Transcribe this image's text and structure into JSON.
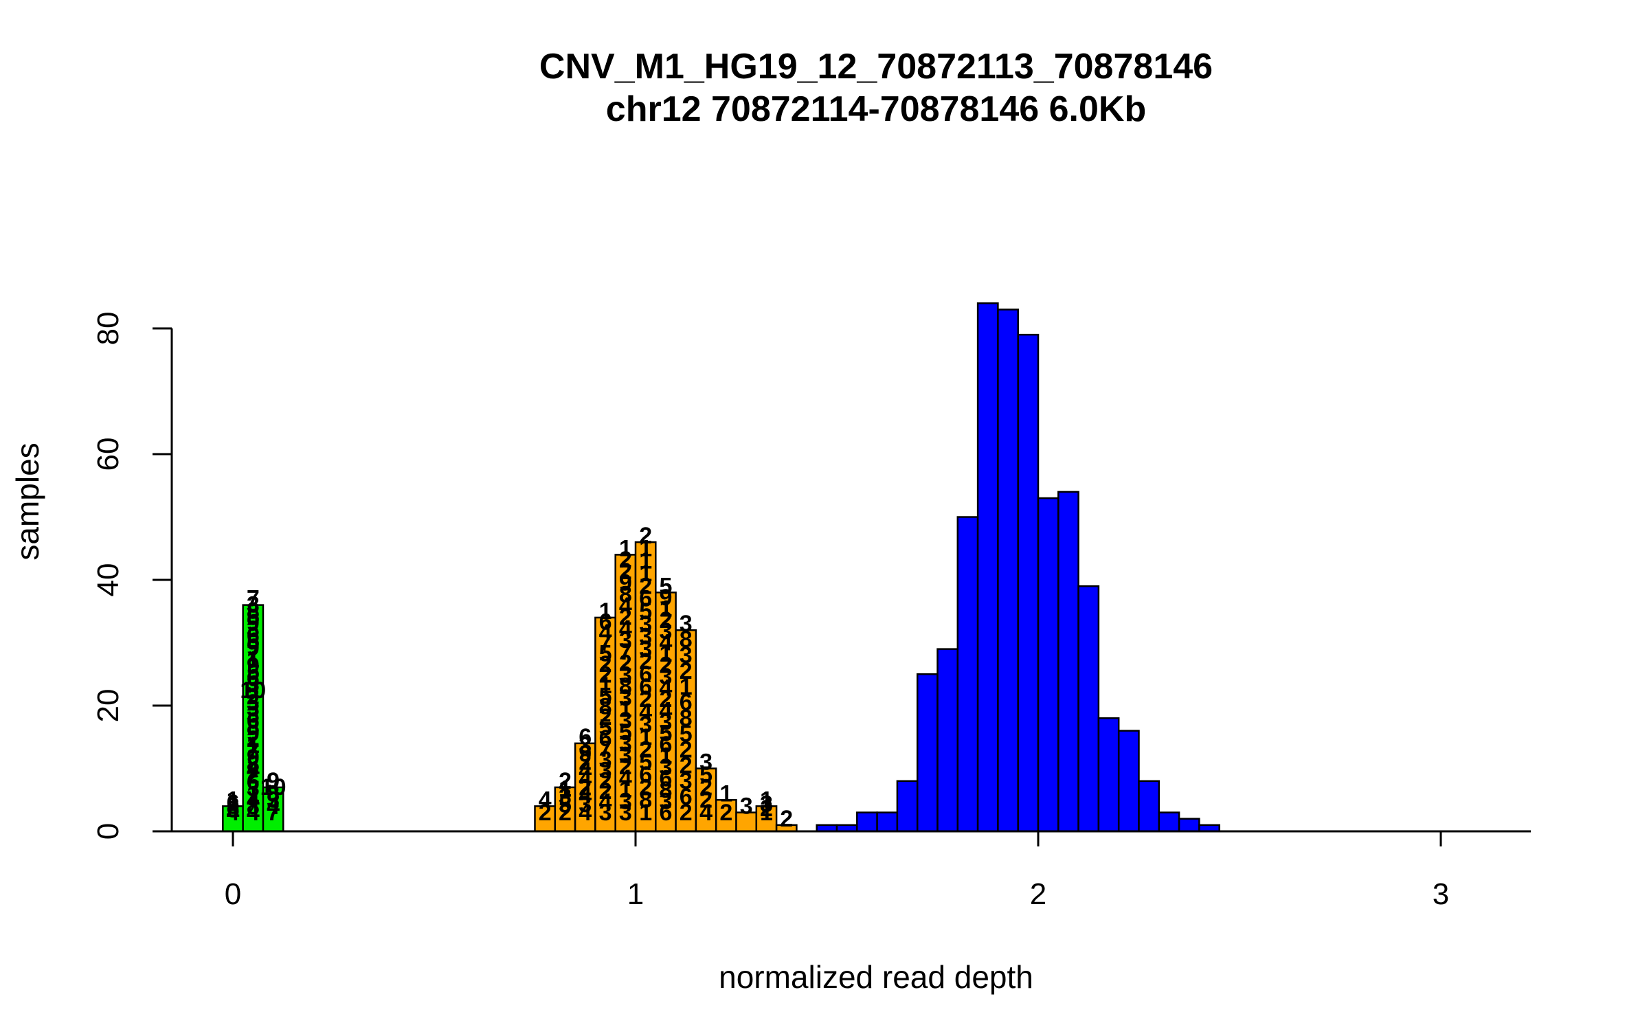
{
  "chart_data": {
    "type": "bar",
    "title": "CNV_M1_HG19_12_70872113_70878146",
    "subtitle": "chr12 70872114-70878146 6.0Kb",
    "xlabel": "normalized read depth",
    "ylabel": "samples",
    "xlim": [
      -0.15,
      3.22
    ],
    "ylim": [
      0,
      85
    ],
    "x_ticks": [
      0,
      1,
      2,
      3
    ],
    "y_ticks": [
      0,
      20,
      40,
      60,
      80
    ],
    "grid": false,
    "legend": "none",
    "bin_width": 0.05,
    "colors": {
      "copy_number_0": "#00ee00",
      "copy_number_1": "#ffa500",
      "copy_number_2": "#0000ff",
      "outline": "#000000"
    },
    "series": [
      {
        "color": "#00ee00",
        "bins": [
          {
            "x0": -0.025,
            "count": 4,
            "labels": [
              "1",
              "6",
              "8",
              "5",
              "4"
            ]
          },
          {
            "x0": 0.025,
            "count": 36,
            "labels": [
              "7",
              "3",
              "8",
              "5",
              "9",
              "3",
              "6",
              "5",
              "9",
              "7",
              "1",
              "9",
              "5",
              "6",
              "3",
              "10",
              "2",
              "3",
              "3",
              "3",
              "6",
              "8",
              "9",
              "2",
              "1",
              "7",
              "9",
              "8",
              "4",
              "2",
              "6",
              "3",
              "1",
              "4",
              "8",
              "4"
            ]
          },
          {
            "x0": 0.075,
            "count": 7,
            "labels": [
              "9",
              "10",
              "8",
              "3",
              "4",
              "7"
            ]
          }
        ]
      },
      {
        "color": "#ffa500",
        "bins": [
          {
            "x0": 0.75,
            "count": 4,
            "labels": [
              "4",
              "2"
            ]
          },
          {
            "x0": 0.8,
            "count": 7,
            "labels": [
              "2",
              "1",
              "3",
              "5",
              "2"
            ]
          },
          {
            "x0": 0.85,
            "count": 14,
            "labels": [
              "6",
              "3",
              "9",
              "2",
              "4",
              "4",
              "2",
              "4",
              "3",
              "4"
            ]
          },
          {
            "x0": 0.9,
            "count": 34,
            "labels": [
              "1",
              "6",
              "4",
              "7",
              "5",
              "2",
              "2",
              "1",
              "5",
              "8",
              "2",
              "5",
              "6",
              "7",
              "3",
              "3",
              "2",
              "2",
              "4",
              "3"
            ]
          },
          {
            "x0": 0.95,
            "count": 44,
            "labels": [
              "1",
              "2",
              "2",
              "9",
              "8",
              "4",
              "2",
              "4",
              "3",
              "7",
              "2",
              "3",
              "8",
              "3",
              "1",
              "3",
              "5",
              "3",
              "3",
              "2",
              "4",
              "1",
              "3",
              "3"
            ]
          },
          {
            "x0": 1.0,
            "count": 46,
            "labels": [
              "2",
              "1",
              "1",
              "1",
              "2",
              "6",
              "5",
              "3",
              "3",
              "3",
              "2",
              "6",
              "6",
              "2",
              "4",
              "3",
              "1",
              "2",
              "5",
              "6",
              "2",
              "8",
              "1"
            ]
          },
          {
            "x0": 1.05,
            "count": 38,
            "labels": [
              "5",
              "9",
              "1",
              "2",
              "3",
              "4",
              "1",
              "2",
              "3",
              "4",
              "2",
              "4",
              "3",
              "5",
              "6",
              "1",
              "3",
              "6",
              "8",
              "3",
              "6"
            ]
          },
          {
            "x0": 1.1,
            "count": 32,
            "labels": [
              "3",
              "8",
              "3",
              "2",
              "1",
              "6",
              "8",
              "5",
              "2",
              "2",
              "3",
              "6",
              "2"
            ]
          },
          {
            "x0": 1.15,
            "count": 10,
            "labels": [
              "3",
              "5",
              "2",
              "2",
              "4"
            ]
          },
          {
            "x0": 1.2,
            "count": 5,
            "labels": [
              "1",
              "2"
            ]
          },
          {
            "x0": 1.25,
            "count": 3,
            "labels": [
              "3"
            ]
          },
          {
            "x0": 1.3,
            "count": 4,
            "labels": [
              "1",
              "3",
              "2",
              "1"
            ]
          },
          {
            "x0": 1.35,
            "count": 1,
            "labels": [
              "2"
            ]
          }
        ]
      },
      {
        "color": "#0000ff",
        "bins": [
          {
            "x0": 1.45,
            "count": 1,
            "labels": []
          },
          {
            "x0": 1.5,
            "count": 1,
            "labels": []
          },
          {
            "x0": 1.55,
            "count": 3,
            "labels": []
          },
          {
            "x0": 1.6,
            "count": 3,
            "labels": []
          },
          {
            "x0": 1.65,
            "count": 8,
            "labels": []
          },
          {
            "x0": 1.7,
            "count": 25,
            "labels": []
          },
          {
            "x0": 1.75,
            "count": 29,
            "labels": []
          },
          {
            "x0": 1.8,
            "count": 50,
            "labels": []
          },
          {
            "x0": 1.85,
            "count": 84,
            "labels": []
          },
          {
            "x0": 1.9,
            "count": 83,
            "labels": []
          },
          {
            "x0": 1.95,
            "count": 79,
            "labels": []
          },
          {
            "x0": 2.0,
            "count": 53,
            "labels": []
          },
          {
            "x0": 2.05,
            "count": 54,
            "labels": []
          },
          {
            "x0": 2.1,
            "count": 39,
            "labels": []
          },
          {
            "x0": 2.15,
            "count": 18,
            "labels": []
          },
          {
            "x0": 2.2,
            "count": 16,
            "labels": []
          },
          {
            "x0": 2.25,
            "count": 8,
            "labels": []
          },
          {
            "x0": 2.3,
            "count": 3,
            "labels": []
          },
          {
            "x0": 2.35,
            "count": 2,
            "labels": []
          },
          {
            "x0": 2.4,
            "count": 1,
            "labels": []
          }
        ]
      }
    ]
  }
}
